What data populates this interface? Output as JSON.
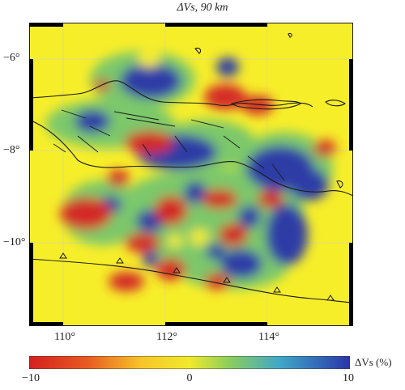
{
  "figure": {
    "title": "ΔVs, 90 km"
  },
  "map": {
    "lat_labels": [
      "−6°",
      "−8°",
      "−10°"
    ],
    "lon_labels": [
      "110°",
      "112°",
      "114°"
    ],
    "colors": {
      "background": "#f7ee2a",
      "positive": "#2c3aa0",
      "negative": "#d42a2a",
      "mid": "#73c46b",
      "coast": "#1a1a1a"
    }
  },
  "colorbar": {
    "label": "ΔVs (%)",
    "ticks": [
      "−10",
      "0",
      "10"
    ],
    "range": [
      -10,
      10
    ]
  }
}
